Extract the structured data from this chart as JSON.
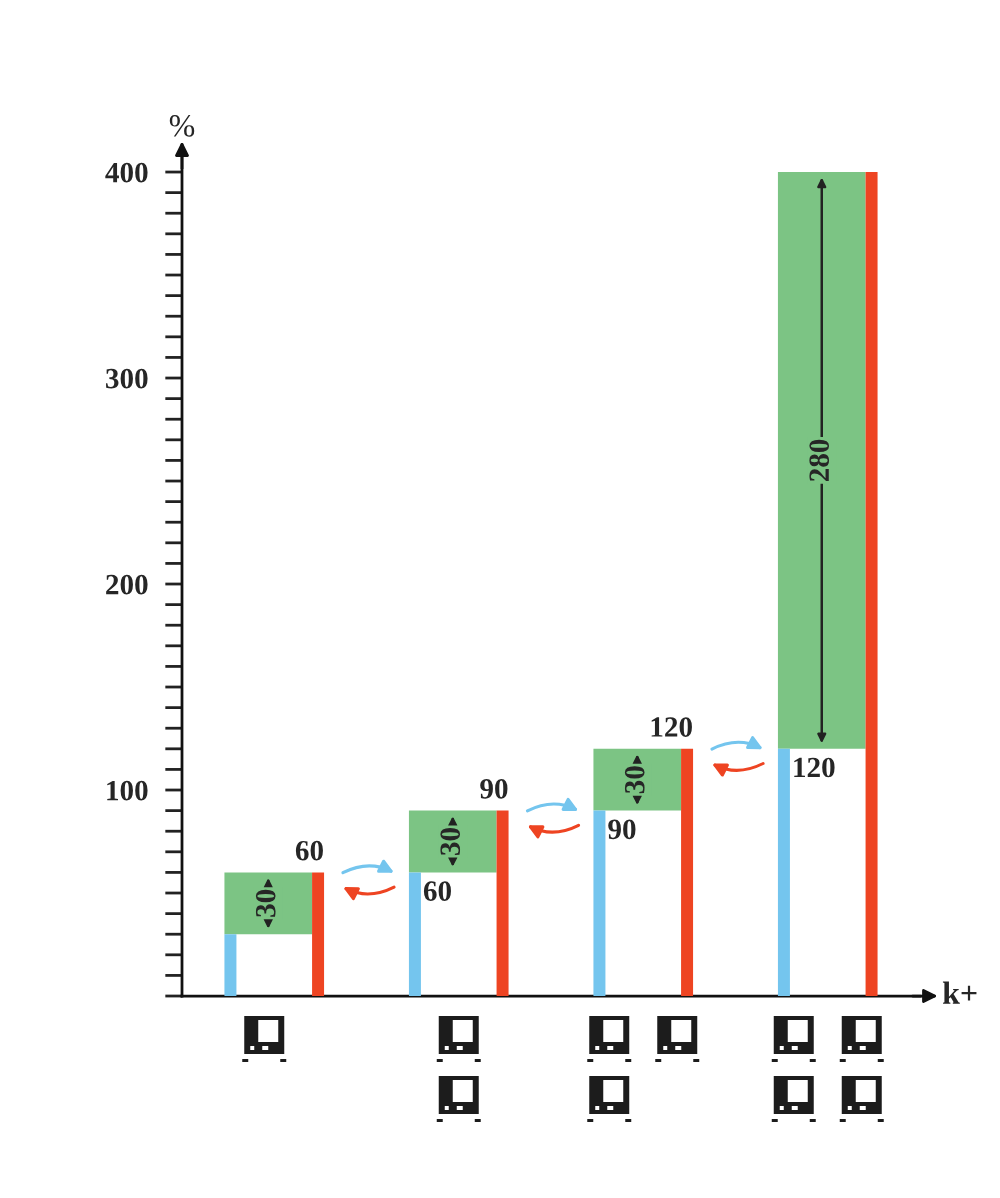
{
  "chart_data": {
    "type": "bar",
    "categories": [
      null,
      null,
      null,
      null
    ],
    "xlabel": "k+",
    "ylabel": "%",
    "ylim": [
      0,
      410
    ],
    "yticks": [
      {
        "value": 0,
        "label": null
      },
      {
        "value": 10,
        "label": null
      },
      {
        "value": 20,
        "label": null
      },
      {
        "value": 30,
        "label": null
      },
      {
        "value": 40,
        "label": null
      },
      {
        "value": 50,
        "label": null
      },
      {
        "value": 60,
        "label": null
      },
      {
        "value": 70,
        "label": null
      },
      {
        "value": 80,
        "label": null
      },
      {
        "value": 90,
        "label": null
      },
      100,
      {
        "value": 110,
        "label": null
      },
      {
        "value": 120,
        "label": null
      },
      {
        "value": 130,
        "label": null
      },
      {
        "value": 140,
        "label": null
      },
      {
        "value": 150,
        "label": null
      },
      {
        "value": 160,
        "label": null
      },
      {
        "value": 170,
        "label": null
      },
      {
        "value": 180,
        "label": null
      },
      {
        "value": 190,
        "label": null
      },
      200,
      {
        "value": 210,
        "label": null
      },
      {
        "value": 220,
        "label": null
      },
      {
        "value": 230,
        "label": null
      },
      {
        "value": 240,
        "label": null
      },
      {
        "value": 250,
        "label": null
      },
      {
        "value": 260,
        "label": null
      },
      {
        "value": 270,
        "label": null
      },
      {
        "value": 280,
        "label": null
      },
      {
        "value": 290,
        "label": null
      },
      300,
      {
        "value": 310,
        "label": null
      },
      {
        "value": 320,
        "label": null
      },
      {
        "value": 330,
        "label": null
      },
      {
        "value": 340,
        "label": null
      },
      {
        "value": 350,
        "label": null
      },
      {
        "value": 360,
        "label": null
      },
      {
        "value": 370,
        "label": null
      },
      {
        "value": 380,
        "label": null
      },
      {
        "value": 390,
        "label": null
      },
      400
    ],
    "series": [
      {
        "color": "#74c5ee",
        "values": [
          30,
          60,
          90,
          120
        ],
        "value_labels": [
          null,
          "60",
          "90",
          "120"
        ]
      },
      {
        "color": "#7cc484",
        "base": [
          30,
          60,
          90,
          120
        ],
        "values": [
          30,
          30,
          30,
          280
        ],
        "value_labels": [
          "30",
          "30",
          "30",
          "280"
        ]
      },
      {
        "color": "#ee4422",
        "values": [
          60,
          90,
          120,
          400
        ],
        "value_labels": [
          "60",
          "90",
          "120",
          null
        ]
      }
    ]
  }
}
